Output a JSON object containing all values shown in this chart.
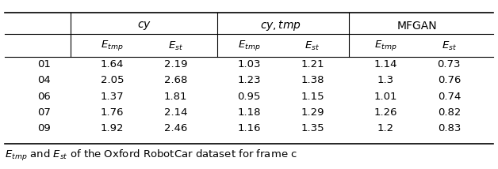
{
  "rows": [
    "01",
    "04",
    "06",
    "07",
    "09"
  ],
  "cy_etmp": [
    "1.64",
    "2.05",
    "1.37",
    "1.76",
    "1.92"
  ],
  "cy_est": [
    "2.19",
    "2.68",
    "1.81",
    "2.14",
    "2.46"
  ],
  "cytmp_etmp": [
    "1.03",
    "1.23",
    "0.95",
    "1.18",
    "1.16"
  ],
  "cytmp_est": [
    "1.21",
    "1.38",
    "1.15",
    "1.29",
    "1.35"
  ],
  "mfgan_etmp": [
    "1.14",
    "1.3",
    "1.01",
    "1.26",
    "1.2"
  ],
  "mfgan_est": [
    "0.73",
    "0.76",
    "0.74",
    "0.82",
    "0.83"
  ],
  "col_header1": "$cy$",
  "col_header2": "$cy, tmp$",
  "col_header3": "MFGAN",
  "sub_header_etmp": "$E_{tmp}$",
  "sub_header_est": "$E_{st}$",
  "caption": "$E_{tmp}$ and $E_{st}$ of the Oxford RobotCar dataset for frame c",
  "bg_color": "#ffffff",
  "text_color": "#000000",
  "fontsize": 9.5
}
